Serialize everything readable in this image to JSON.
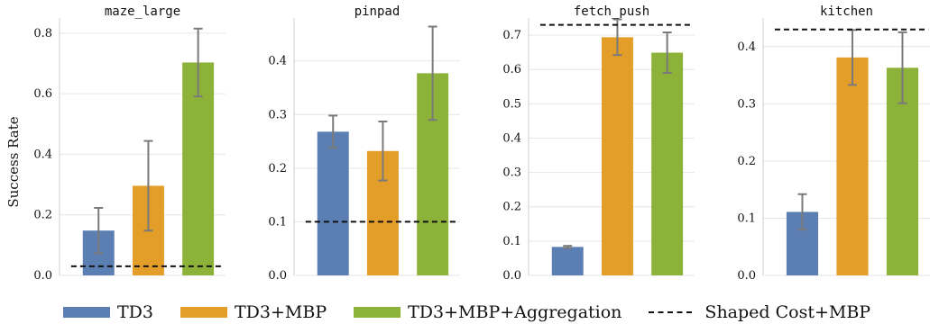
{
  "colors": {
    "TD3": "#5b7fb2",
    "TD3+MBP": "#e39e2a",
    "TD3+MBP+Aggregation": "#8db23a",
    "grid": "#e6e6e6",
    "errorbar": "#7a7a7a"
  },
  "ylabel": "Success Rate",
  "legend": [
    {
      "label": "TD3",
      "kind": "bar",
      "color": "#5b7fb2"
    },
    {
      "label": "TD3+MBP",
      "kind": "bar",
      "color": "#e39e2a"
    },
    {
      "label": "TD3+MBP+Aggregation",
      "kind": "bar",
      "color": "#8db23a"
    },
    {
      "label": "Shaped Cost+MBP",
      "kind": "dashed-line",
      "color": "#111111"
    }
  ],
  "chart_data": [
    {
      "type": "bar",
      "title": "maze_large",
      "categories": [
        "TD3",
        "TD3+MBP",
        "TD3+MBP+Aggregation"
      ],
      "values": [
        0.148,
        0.296,
        0.703
      ],
      "errors": [
        0.075,
        0.148,
        0.112
      ],
      "reference_line": {
        "label": "Shaped Cost+MBP",
        "value": 0.03
      },
      "ylim": [
        0,
        0.85
      ],
      "yticks": [
        0.0,
        0.2,
        0.4,
        0.6,
        0.8
      ],
      "ytick_labels": [
        "0.0",
        "0.2",
        "0.4",
        "0.6",
        "0.8"
      ],
      "grid": true
    },
    {
      "type": "bar",
      "title": "pinpad",
      "categories": [
        "TD3",
        "TD3+MBP",
        "TD3+MBP+Aggregation"
      ],
      "values": [
        0.268,
        0.232,
        0.377
      ],
      "errors": [
        0.03,
        0.055,
        0.087
      ],
      "reference_line": {
        "label": "Shaped Cost+MBP",
        "value": 0.1
      },
      "ylim": [
        0,
        0.48
      ],
      "yticks": [
        0.0,
        0.1,
        0.2,
        0.3,
        0.4
      ],
      "ytick_labels": [
        "0.0",
        "0.1",
        "0.2",
        "0.3",
        "0.4"
      ],
      "grid": true
    },
    {
      "type": "bar",
      "title": "fetch_push",
      "categories": [
        "TD3",
        "TD3+MBP",
        "TD3+MBP+Aggregation"
      ],
      "values": [
        0.083,
        0.694,
        0.649
      ],
      "errors": [
        0.003,
        0.052,
        0.059
      ],
      "reference_line": {
        "label": "Shaped Cost+MBP",
        "value": 0.73
      },
      "ylim": [
        0,
        0.75
      ],
      "yticks": [
        0.0,
        0.1,
        0.2,
        0.3,
        0.4,
        0.5,
        0.6,
        0.7
      ],
      "ytick_labels": [
        "0.0",
        "0.1",
        "0.2",
        "0.3",
        "0.4",
        "0.5",
        "0.6",
        "0.7"
      ],
      "grid": true
    },
    {
      "type": "bar",
      "title": "kitchen",
      "categories": [
        "TD3",
        "TD3+MBP",
        "TD3+MBP+Aggregation"
      ],
      "values": [
        0.111,
        0.381,
        0.363
      ],
      "errors": [
        0.031,
        0.048,
        0.062
      ],
      "reference_line": {
        "label": "Shaped Cost+MBP",
        "value": 0.43
      },
      "ylim": [
        0,
        0.45
      ],
      "yticks": [
        0.0,
        0.1,
        0.2,
        0.3,
        0.4
      ],
      "ytick_labels": [
        "0.0",
        "0.1",
        "0.2",
        "0.3",
        "0.4"
      ],
      "grid": true
    }
  ]
}
